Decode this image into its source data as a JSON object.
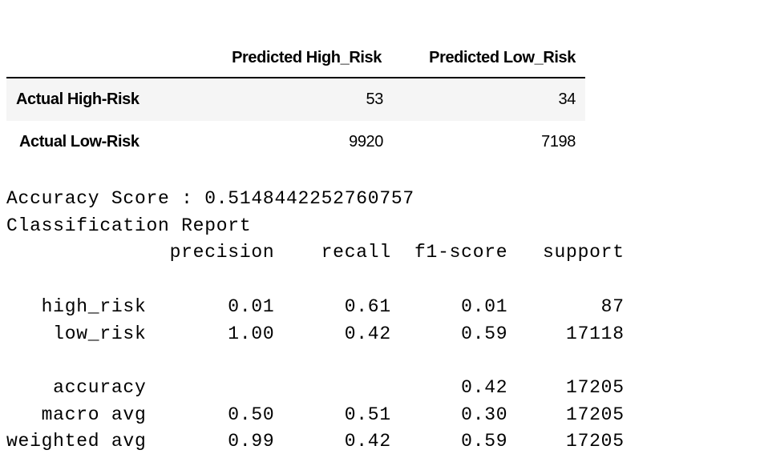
{
  "dataframe": {
    "columns": [
      "Predicted High_Risk",
      "Predicted Low_Risk"
    ],
    "rows": [
      {
        "label": "Actual High-Risk",
        "values": [
          "53",
          "34"
        ]
      },
      {
        "label": "Actual Low-Risk",
        "values": [
          "9920",
          "7198"
        ]
      }
    ]
  },
  "output": {
    "accuracy_line": "Accuracy Score : 0.5148442252760757",
    "report_title": "Classification Report",
    "report_body": "              precision    recall  f1-score   support\n\n   high_risk       0.01      0.61      0.01        87\n    low_risk       1.00      0.42      0.59     17118\n\n    accuracy                           0.42     17205\n   macro avg       0.50      0.51      0.30     17205\nweighted avg       0.99      0.42      0.59     17205"
  }
}
